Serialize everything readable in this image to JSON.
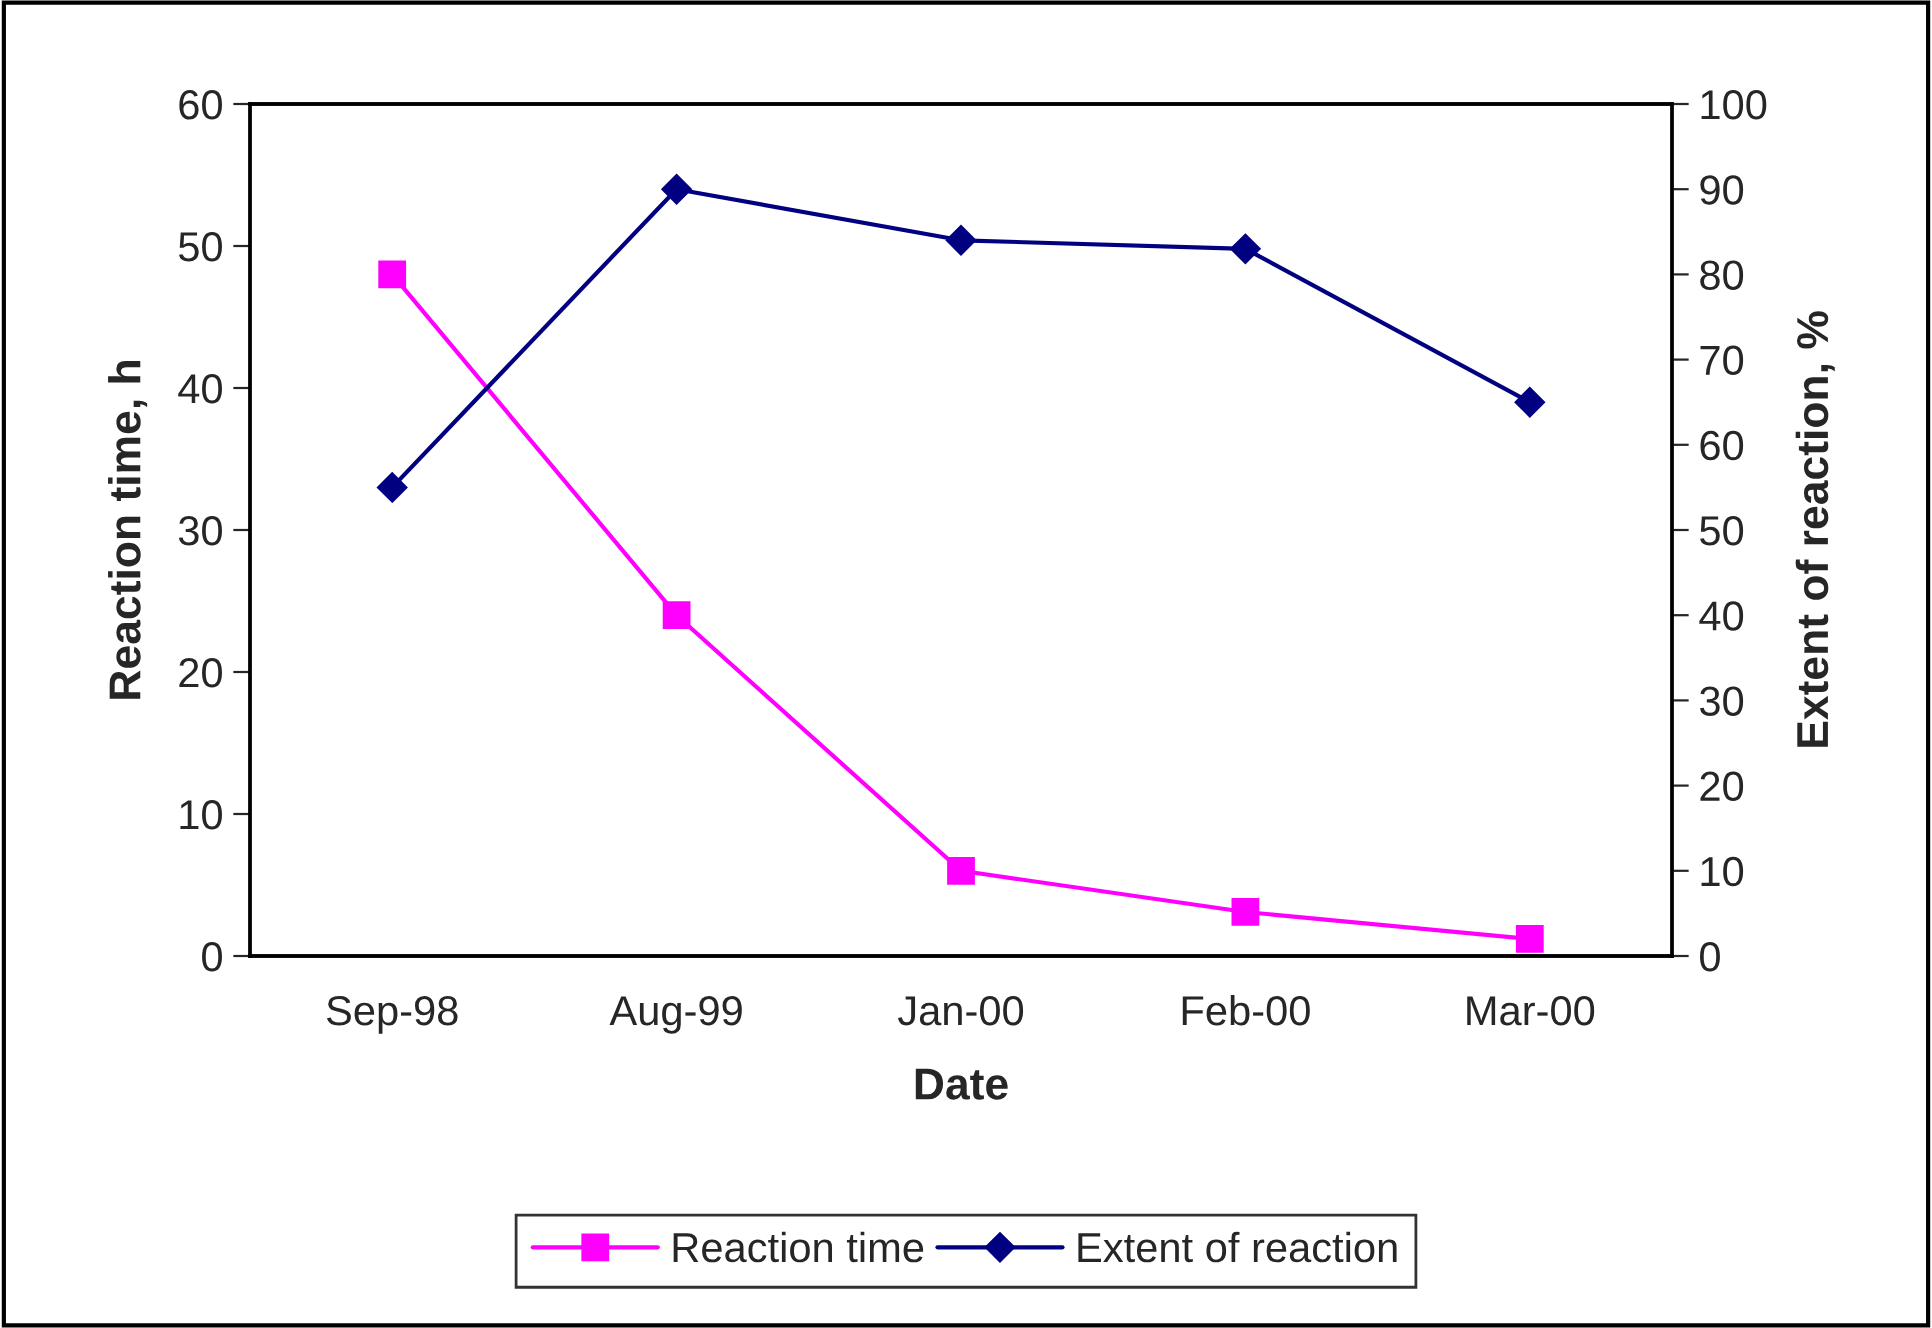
{
  "chart_data": {
    "type": "line",
    "xlabel": "Date",
    "ylabel": "Reaction time, h",
    "y2label": "Extent of reaction, %",
    "categories": [
      "Sep-98",
      "Aug-99",
      "Jan-00",
      "Feb-00",
      "Mar-00"
    ],
    "series": [
      {
        "name": "Reaction time",
        "color": "#ff00ff",
        "marker": "square",
        "values": [
          48,
          24,
          6,
          3.1,
          1.2
        ]
      },
      {
        "name": "Extent of reaction",
        "color": "#000080",
        "marker": "diamond",
        "axis": "y2",
        "values": [
          55,
          90,
          84,
          83,
          65
        ]
      }
    ],
    "ylim": [
      0,
      60
    ],
    "yticks": [
      0,
      10,
      20,
      30,
      40,
      50,
      60
    ],
    "y2lim": [
      0,
      100
    ],
    "y2ticks": [
      0,
      10,
      20,
      30,
      40,
      50,
      60,
      70,
      80,
      90,
      100
    ],
    "grid": false,
    "legend": "bottom",
    "line_style": "solid"
  }
}
